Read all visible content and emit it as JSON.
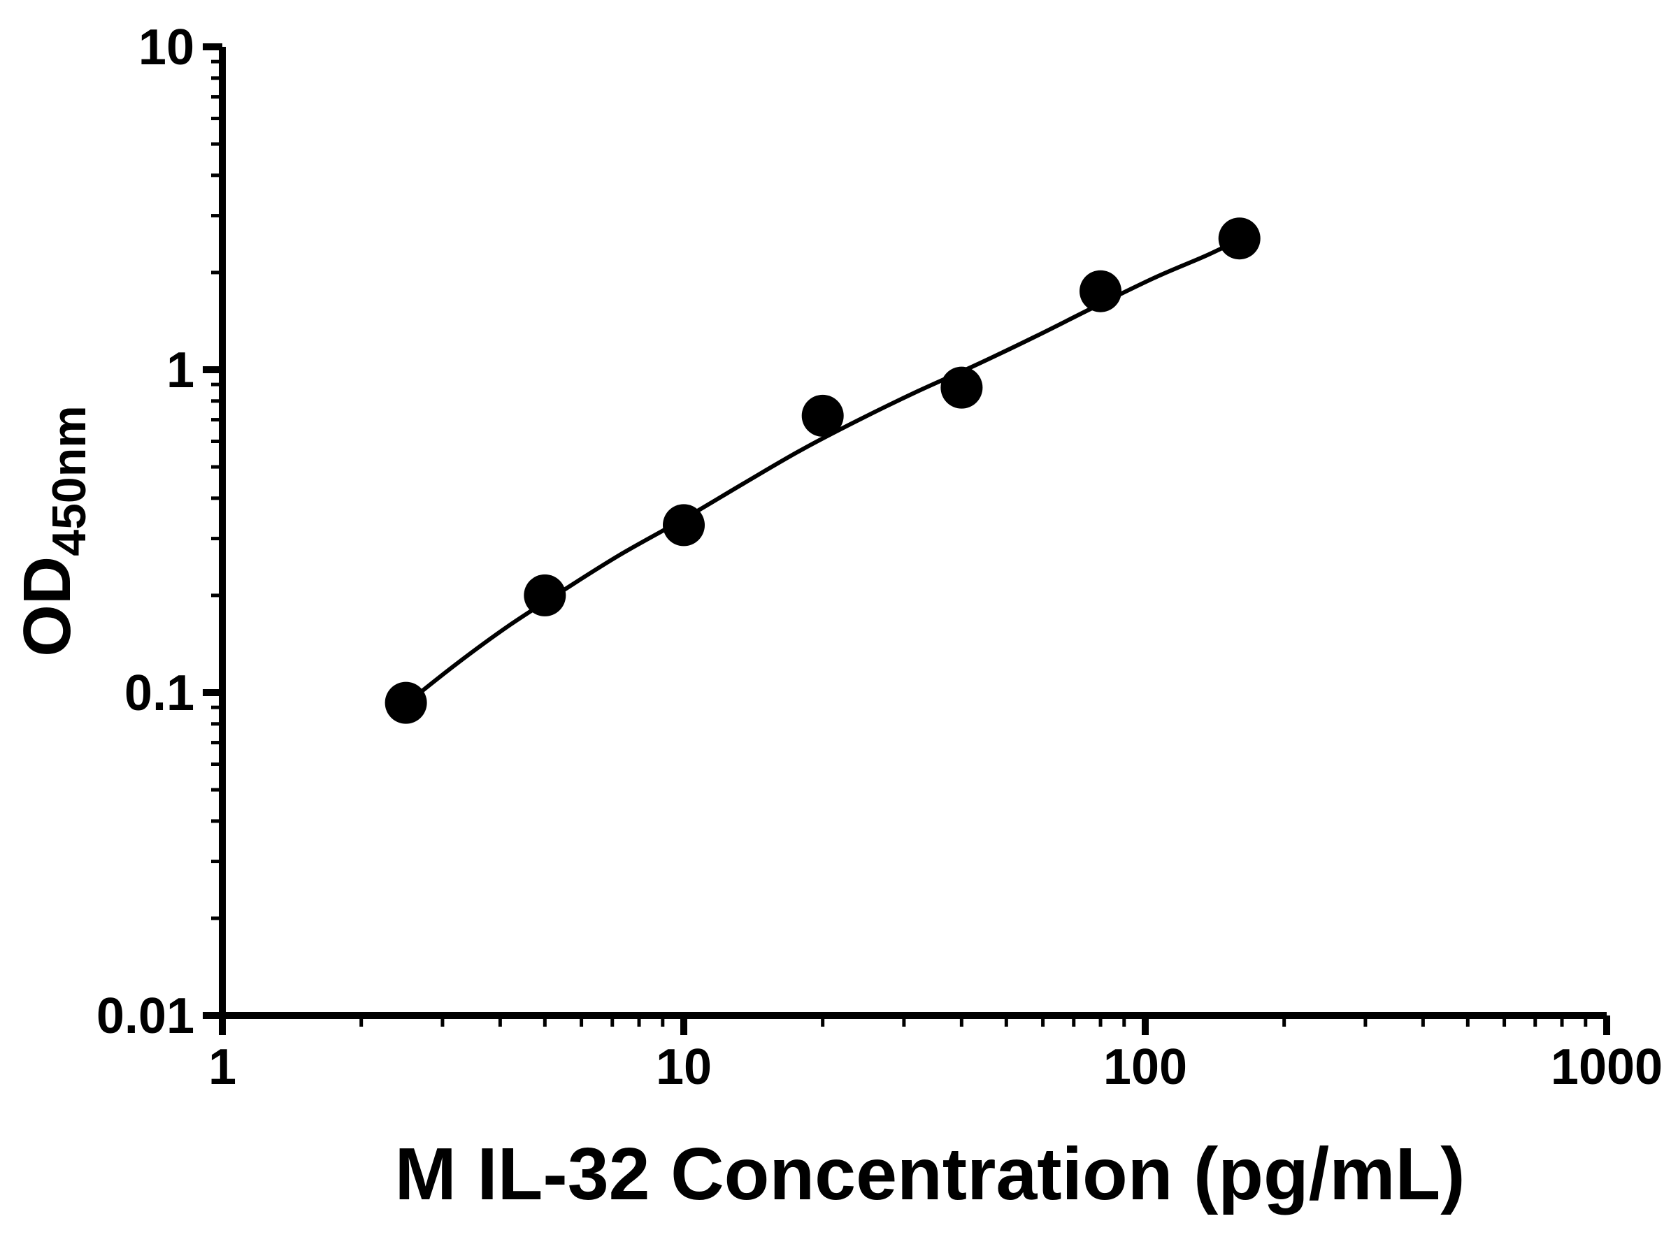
{
  "figure": {
    "background": "#ffffff"
  },
  "chart_data": {
    "type": "scatter",
    "title": "",
    "xlabel": "M IL-32 Concentration (pg/mL)",
    "ylabel": "OD450nm",
    "ylabel_main": "OD",
    "ylabel_sub": "450nm",
    "x_scale": "log10",
    "y_scale": "log10",
    "xlim": [
      1,
      1000
    ],
    "ylim": [
      0.01,
      10
    ],
    "grid": false,
    "legend": "none",
    "marker": {
      "shape": "circle",
      "color": "#000000",
      "radius": 30
    },
    "line_color": "#000000",
    "axis_color": "#000000",
    "x_ticks": [
      {
        "value": 1,
        "label": "1"
      },
      {
        "value": 10,
        "label": "10"
      },
      {
        "value": 100,
        "label": "100"
      },
      {
        "value": 1000,
        "label": "1000"
      }
    ],
    "y_ticks": [
      {
        "value": 0.01,
        "label": "0.01"
      },
      {
        "value": 0.1,
        "label": "0.1"
      },
      {
        "value": 1,
        "label": "1"
      },
      {
        "value": 10,
        "label": "10"
      }
    ],
    "minor_ticks": true,
    "points": [
      {
        "x": 2.5,
        "y": 0.093
      },
      {
        "x": 5,
        "y": 0.2
      },
      {
        "x": 10,
        "y": 0.33
      },
      {
        "x": 20,
        "y": 0.72
      },
      {
        "x": 40,
        "y": 0.88
      },
      {
        "x": 80,
        "y": 1.75
      },
      {
        "x": 160,
        "y": 2.55
      }
    ],
    "fit_curve": [
      [
        2.4,
        0.088
      ],
      [
        3.2,
        0.122
      ],
      [
        4.2,
        0.162
      ],
      [
        5.5,
        0.208
      ],
      [
        7.3,
        0.268
      ],
      [
        10,
        0.345
      ],
      [
        13.5,
        0.445
      ],
      [
        18,
        0.565
      ],
      [
        24,
        0.7
      ],
      [
        32,
        0.855
      ],
      [
        43,
        1.035
      ],
      [
        58,
        1.27
      ],
      [
        78,
        1.57
      ],
      [
        105,
        1.93
      ],
      [
        135,
        2.25
      ],
      [
        163,
        2.56
      ]
    ]
  }
}
